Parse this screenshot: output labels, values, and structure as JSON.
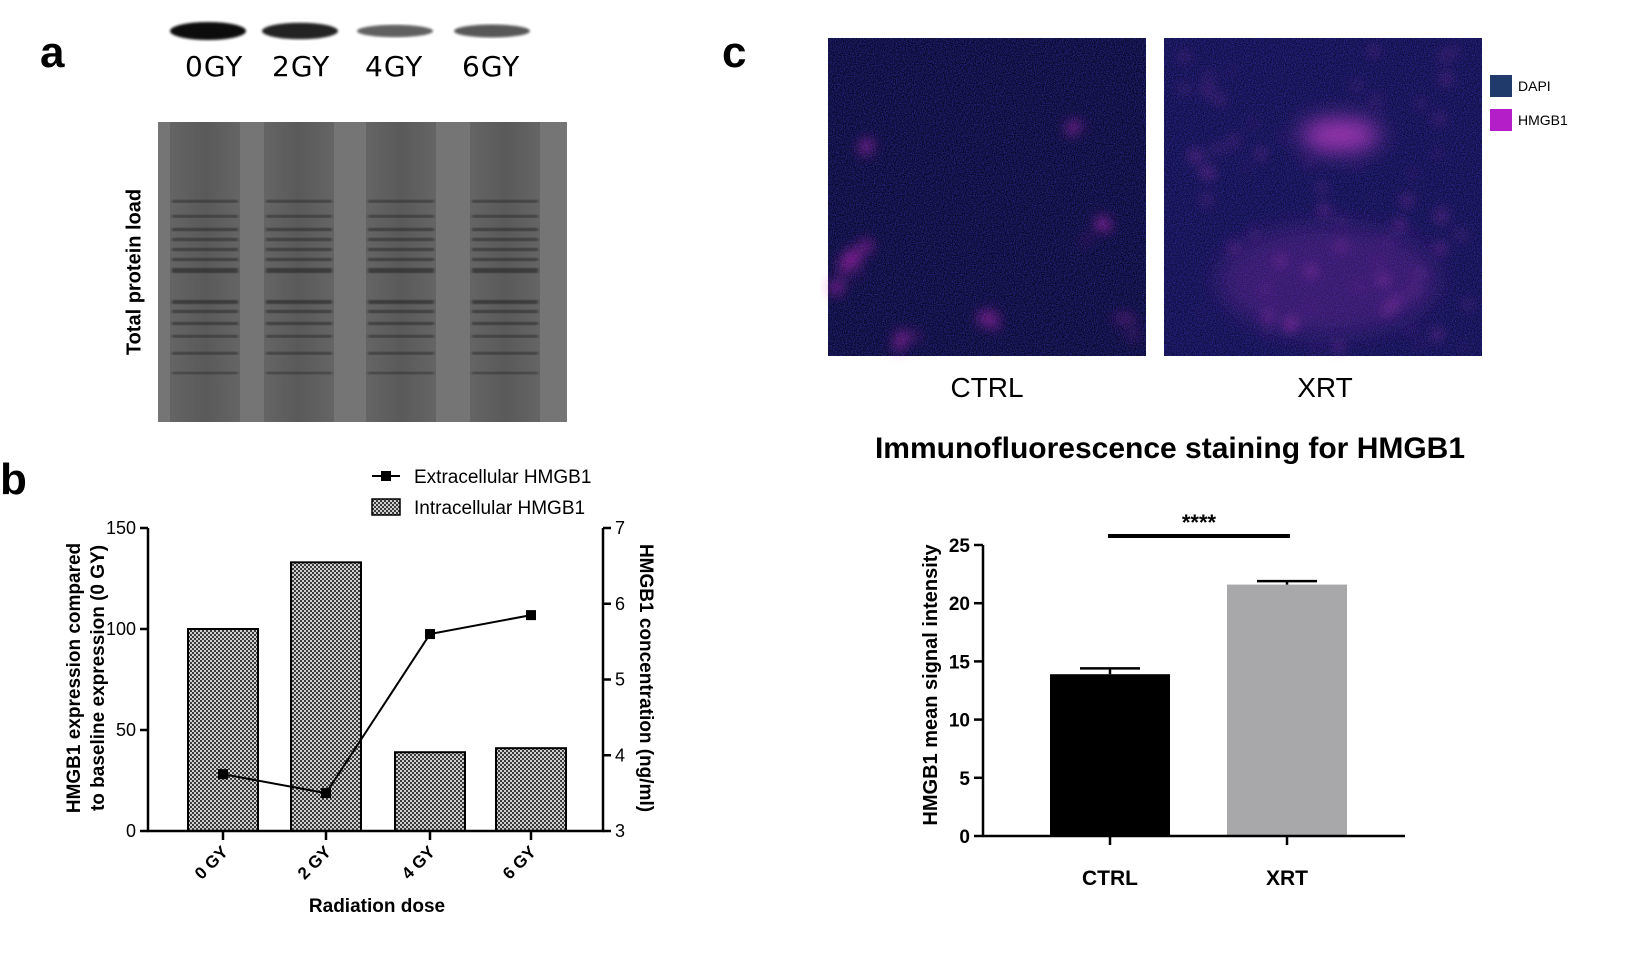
{
  "panels": {
    "a": {
      "letter": "a",
      "lane_labels": [
        "0GY",
        "2GY",
        "4GY",
        "6GY"
      ],
      "band_strength": [
        1.0,
        0.85,
        0.45,
        0.5
      ],
      "total_protein_label": "Total protein load"
    },
    "b": {
      "letter": "b"
    },
    "c": {
      "letter": "c",
      "image_labels": [
        "CTRL",
        "XRT"
      ],
      "legend": [
        {
          "label": "DAPI",
          "color": "#1f3a6b"
        },
        {
          "label": "HMGB1",
          "color": "#b41ec8"
        }
      ],
      "title": "Immunofluorescence staining for HMGB1"
    }
  },
  "chart_data": [
    {
      "type": "bar",
      "categories": [
        "0 GY",
        "2 GY",
        "4 GY",
        "6 GY"
      ],
      "series": [
        {
          "name": "Intracellular HMGB1",
          "type": "bar",
          "axis": "left",
          "values": [
            100,
            133,
            39,
            41
          ]
        },
        {
          "name": "Extracellular HMGB1",
          "type": "line",
          "axis": "right",
          "values": [
            3.75,
            3.5,
            5.6,
            5.85
          ]
        }
      ],
      "xlabel": "Radiation dose",
      "ylabel": [
        "HMGB1 expression compared",
        "to baseline expression (0 GY)"
      ],
      "ylabel_right": "HMGB1 concentration (ng/ml)",
      "ylim": [
        0,
        150
      ],
      "yticks": [
        "0",
        "50",
        "100",
        "150"
      ],
      "ylim_right": [
        3,
        7
      ],
      "yticks_right": [
        "3",
        "4",
        "5",
        "6",
        "7"
      ],
      "legend_position": "top-right",
      "grid": false
    },
    {
      "type": "bar",
      "categories": [
        "CTRL",
        "XRT"
      ],
      "values": [
        13.9,
        21.6
      ],
      "errors": [
        0.5,
        0.3
      ],
      "colors": [
        "#000000",
        "#a8a8ab"
      ],
      "ylabel": "HMGB1 mean signal intensity",
      "ylim": [
        0,
        25
      ],
      "yticks": [
        "0",
        "5",
        "10",
        "15",
        "20",
        "25"
      ],
      "significance": "****",
      "grid": false
    }
  ]
}
